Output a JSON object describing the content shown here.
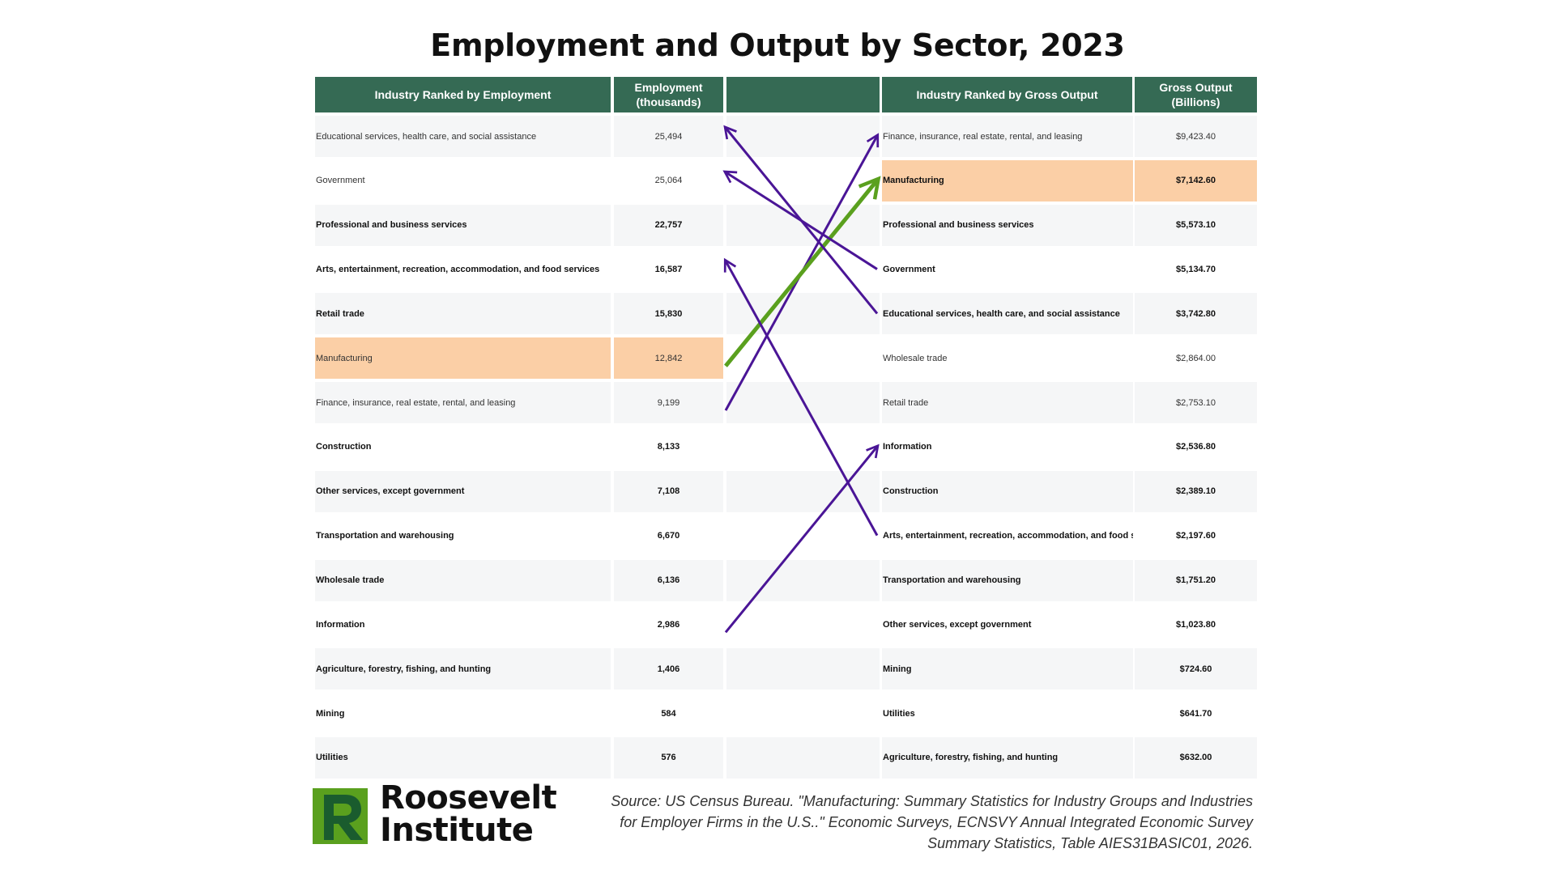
{
  "title": "Employment and Output by Sector, 2023",
  "left_table": {
    "header_industry": "Industry Ranked by Employment",
    "header_value_line1": "Employment",
    "header_value_line2": "(thousands)",
    "rows": [
      {
        "industry": "Educational services, health care, and social assistance",
        "value": "25,494",
        "bold": false,
        "highlight": false
      },
      {
        "industry": "Government",
        "value": "25,064",
        "bold": false,
        "highlight": false
      },
      {
        "industry": "Professional and business services",
        "value": "22,757",
        "bold": true,
        "highlight": false
      },
      {
        "industry": "Arts, entertainment, recreation, accommodation, and food services",
        "value": "16,587",
        "bold": true,
        "highlight": false
      },
      {
        "industry": "Retail trade",
        "value": "15,830",
        "bold": true,
        "highlight": false
      },
      {
        "industry": "Manufacturing",
        "value": "12,842",
        "bold": false,
        "highlight": true
      },
      {
        "industry": "Finance, insurance, real estate, rental, and leasing",
        "value": "9,199",
        "bold": false,
        "highlight": false
      },
      {
        "industry": "Construction",
        "value": "8,133",
        "bold": true,
        "highlight": false
      },
      {
        "industry": "Other services, except government",
        "value": "7,108",
        "bold": true,
        "highlight": false
      },
      {
        "industry": "Transportation and warehousing",
        "value": "6,670",
        "bold": true,
        "highlight": false
      },
      {
        "industry": "Wholesale trade",
        "value": "6,136",
        "bold": true,
        "highlight": false
      },
      {
        "industry": "Information",
        "value": "2,986",
        "bold": true,
        "highlight": false
      },
      {
        "industry": "Agriculture, forestry, fishing, and hunting",
        "value": "1,406",
        "bold": true,
        "highlight": false
      },
      {
        "industry": "Mining",
        "value": "584",
        "bold": true,
        "highlight": false
      },
      {
        "industry": "Utilities",
        "value": "576",
        "bold": true,
        "highlight": false
      }
    ]
  },
  "right_table": {
    "header_industry": "Industry Ranked by Gross Output",
    "header_value_line1": "Gross Output",
    "header_value_line2": "(Billions)",
    "rows": [
      {
        "industry": "Finance, insurance, real estate, rental, and leasing",
        "value": "$9,423.40",
        "bold": false,
        "highlight": false
      },
      {
        "industry": "Manufacturing",
        "value": "$7,142.60",
        "bold": true,
        "highlight": true
      },
      {
        "industry": "Professional and business services",
        "value": "$5,573.10",
        "bold": true,
        "highlight": false
      },
      {
        "industry": "Government",
        "value": "$5,134.70",
        "bold": true,
        "highlight": false
      },
      {
        "industry": "Educational services, health care, and social assistance",
        "value": "$3,742.80",
        "bold": true,
        "highlight": false
      },
      {
        "industry": "Wholesale trade",
        "value": "$2,864.00",
        "bold": false,
        "highlight": false
      },
      {
        "industry": "Retail trade",
        "value": "$2,753.10",
        "bold": false,
        "highlight": false
      },
      {
        "industry": "Information",
        "value": "$2,536.80",
        "bold": true,
        "highlight": false
      },
      {
        "industry": "Construction",
        "value": "$2,389.10",
        "bold": true,
        "highlight": false
      },
      {
        "industry": "Arts, entertainment, recreation, accommodation, and food services",
        "value": "$2,197.60",
        "bold": true,
        "highlight": false
      },
      {
        "industry": "Transportation and warehousing",
        "value": "$1,751.20",
        "bold": true,
        "highlight": false
      },
      {
        "industry": "Other services, except government",
        "value": "$1,023.80",
        "bold": true,
        "highlight": false
      },
      {
        "industry": "Mining",
        "value": "$724.60",
        "bold": true,
        "highlight": false
      },
      {
        "industry": "Utilities",
        "value": "$641.70",
        "bold": true,
        "highlight": false
      },
      {
        "industry": "Agriculture, forestry, fishing, and hunting",
        "value": "$632.00",
        "bold": true,
        "highlight": false
      }
    ]
  },
  "arrows": [
    {
      "from_left_row": 6,
      "to_right_row": 0,
      "color": "#4a1596"
    },
    {
      "from_left_row": 5,
      "to_right_row": 1,
      "color": "#5aa01e"
    },
    {
      "from_left_row": 1,
      "to_right_row": 3,
      "color": "#4a1596",
      "direction": "up"
    },
    {
      "from_left_row": 0,
      "to_right_row": 4,
      "color": "#4a1596",
      "direction": "up"
    },
    {
      "from_left_row": 11,
      "to_right_row": 7,
      "color": "#4a1596"
    },
    {
      "from_left_row": 3,
      "to_right_row": 9,
      "color": "#4a1596",
      "direction": "up"
    }
  ],
  "chart_data": {
    "type": "table",
    "title": "Employment and Output by Sector, 2023",
    "employment_thousands": {
      "categories": [
        "Educational services, health care, and social assistance",
        "Government",
        "Professional and business services",
        "Arts, entertainment, recreation, accommodation, and food services",
        "Retail trade",
        "Manufacturing",
        "Finance, insurance, real estate, rental, and leasing",
        "Construction",
        "Other services, except government",
        "Transportation and warehousing",
        "Wholesale trade",
        "Information",
        "Agriculture, forestry, fishing, and hunting",
        "Mining",
        "Utilities"
      ],
      "values": [
        25494,
        25064,
        22757,
        16587,
        15830,
        12842,
        9199,
        8133,
        7108,
        6670,
        6136,
        2986,
        1406,
        584,
        576
      ]
    },
    "gross_output_billions": {
      "categories": [
        "Finance, insurance, real estate, rental, and leasing",
        "Manufacturing",
        "Professional and business services",
        "Government",
        "Educational services, health care, and social assistance",
        "Wholesale trade",
        "Retail trade",
        "Information",
        "Construction",
        "Arts, entertainment, recreation, accommodation, and food services",
        "Transportation and warehousing",
        "Other services, except government",
        "Mining",
        "Utilities",
        "Agriculture, forestry, fishing, and hunting"
      ],
      "values": [
        9423.4,
        7142.6,
        5573.1,
        5134.7,
        3742.8,
        2864.0,
        2753.1,
        2536.8,
        2389.1,
        2197.6,
        1751.2,
        1023.8,
        724.6,
        641.7,
        632.0
      ]
    }
  },
  "logo": {
    "line1": "Roosevelt",
    "line2": "Institute",
    "mark_colors": [
      "#5aa01e",
      "#1a5c2e"
    ]
  },
  "source": {
    "line1": "Source: US Census Bureau. \"Manufacturing: Summary Statistics for Industry Groups and Industries",
    "line2": "for Employer Firms in the U.S..\" Economic Surveys, ECNSVY Annual Integrated Economic Survey",
    "line3": "Summary Statistics, Table AIES31BASIC01, 2026."
  }
}
